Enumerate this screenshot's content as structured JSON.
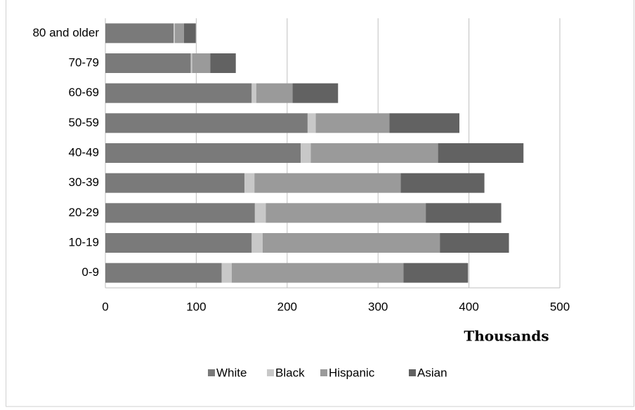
{
  "chart_data": {
    "type": "stacked-barh",
    "categories": [
      "0-9",
      "10-19",
      "20-29",
      "30-39",
      "40-49",
      "50-59",
      "60-69",
      "70-79",
      "80 and older"
    ],
    "series": [
      {
        "name": "White",
        "color": "#7a7a7a",
        "values": [
          128,
          161,
          164.5,
          153,
          215,
          222.5,
          161,
          94,
          75
        ]
      },
      {
        "name": "Black",
        "color": "#c8c8c8",
        "values": [
          11,
          12,
          12,
          11,
          11,
          9,
          5,
          1.5,
          1.5
        ]
      },
      {
        "name": "Hispanic",
        "color": "#9a9a9a",
        "values": [
          189,
          195,
          176,
          161,
          140,
          81,
          40,
          20,
          10
        ]
      },
      {
        "name": "Asian",
        "color": "#626262",
        "values": [
          71,
          76,
          83,
          92,
          94,
          77,
          50,
          28,
          13
        ]
      }
    ],
    "xlim": [
      0,
      500
    ],
    "xticks": [
      0,
      100,
      200,
      300,
      400,
      500
    ],
    "x_label": "Thousands",
    "grid": true,
    "legend": "bottom"
  }
}
